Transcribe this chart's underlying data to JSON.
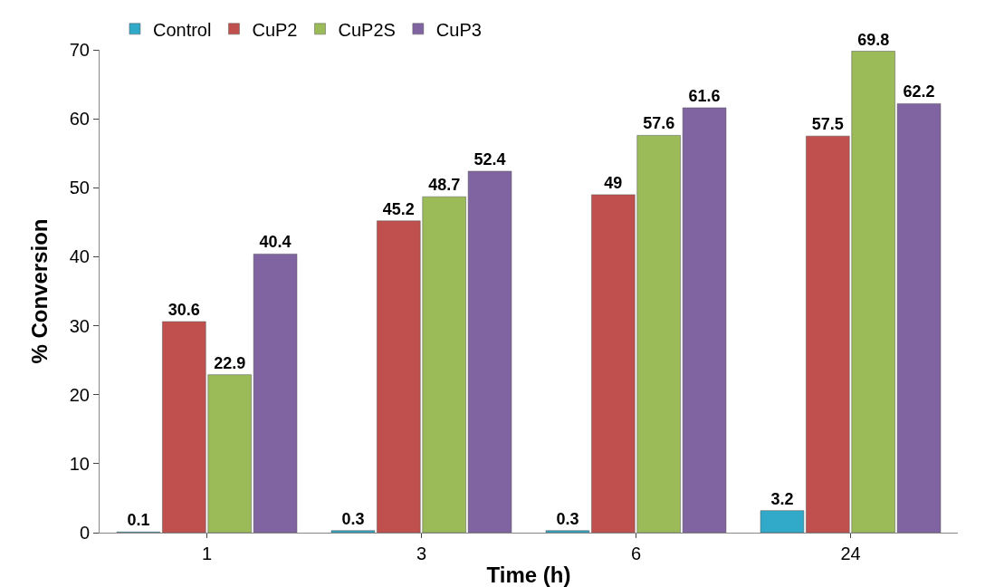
{
  "chart_data": {
    "type": "bar",
    "xlabel": "Time (h)",
    "ylabel": "% Conversion",
    "categories": [
      "1",
      "3",
      "6",
      "24"
    ],
    "series": [
      {
        "name": "Control",
        "color": "#31a9c8",
        "values": [
          0.1,
          0.3,
          0.3,
          3.2
        ]
      },
      {
        "name": "CuP2",
        "color": "#c0504d",
        "values": [
          30.6,
          45.2,
          49,
          57.5
        ]
      },
      {
        "name": "CuP2S",
        "color": "#9bbb59",
        "values": [
          22.9,
          48.7,
          57.6,
          69.8
        ]
      },
      {
        "name": "CuP3",
        "color": "#8064a2",
        "values": [
          40.4,
          52.4,
          61.6,
          62.2
        ]
      }
    ],
    "ylim": [
      0,
      70
    ],
    "yticks": [
      0,
      10,
      20,
      30,
      40,
      50,
      60,
      70
    ],
    "grid": false,
    "legend": "top",
    "data_labels": true
  }
}
